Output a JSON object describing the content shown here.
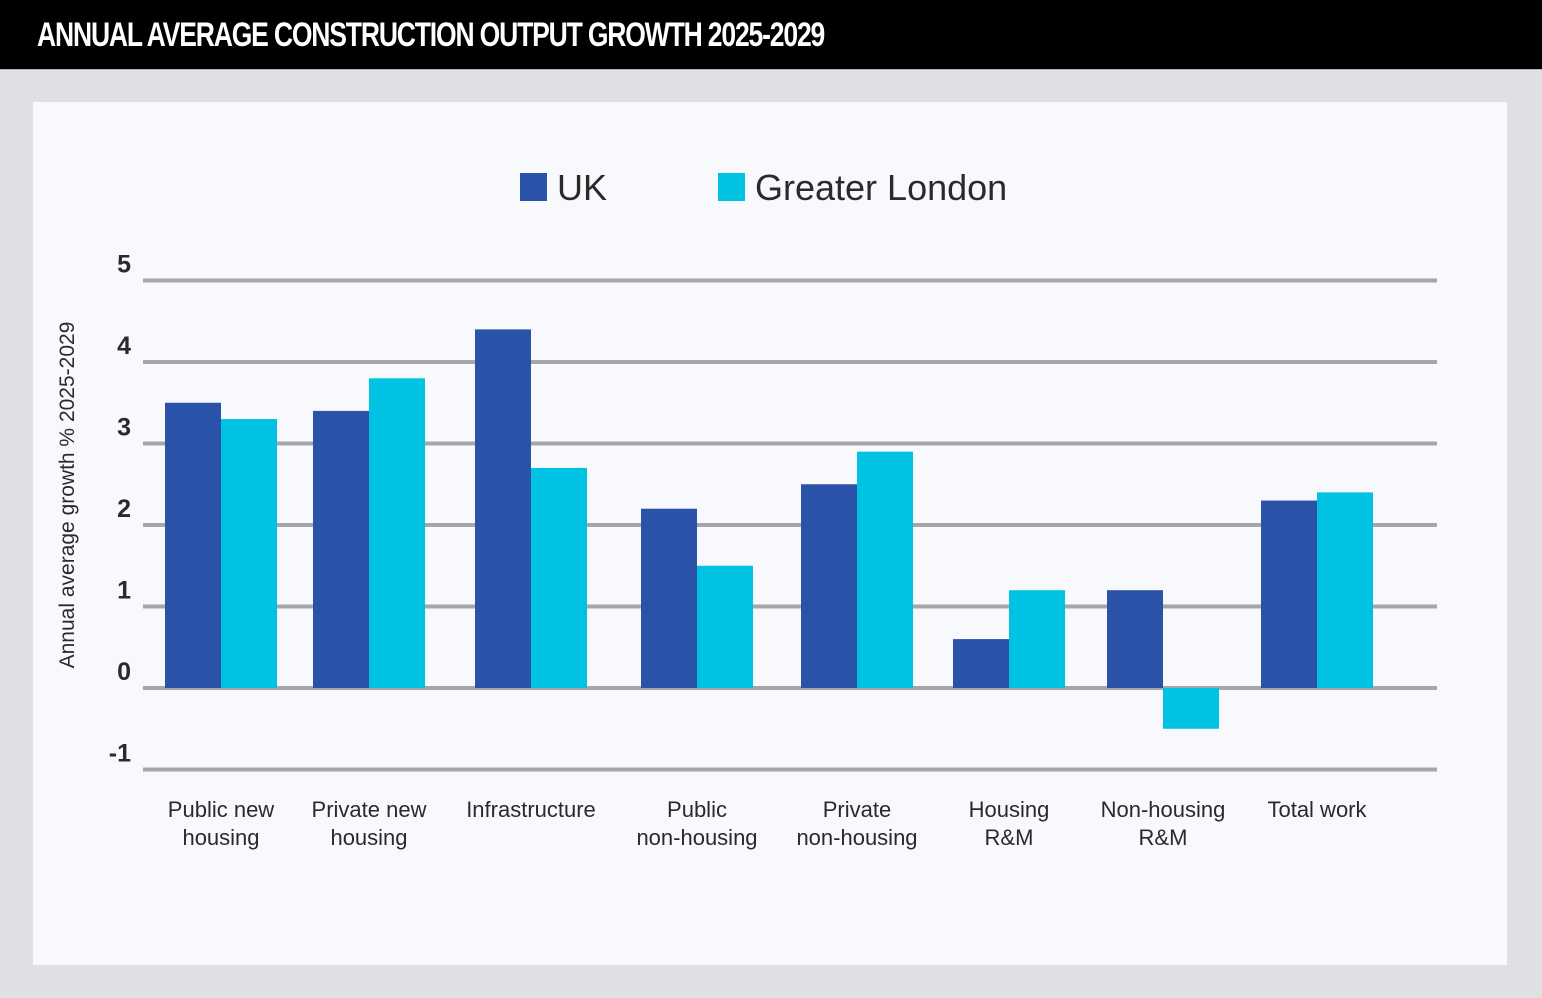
{
  "header": {
    "title": "ANNUAL AVERAGE CONSTRUCTION OUTPUT GROWTH 2025-2029"
  },
  "colors": {
    "uk": "#2a52a8",
    "greater_london": "#00c3e3",
    "grid": "#a6a6a6",
    "header_bg": "#000000",
    "panel_bg": "#f7f9fc",
    "page_bg": "#dfe0e4"
  },
  "chart_data": {
    "type": "bar",
    "title": "ANNUAL AVERAGE CONSTRUCTION OUTPUT GROWTH 2025-2029",
    "xlabel": "",
    "ylabel": "Annual average growth % 2025-2029",
    "ylim": [
      -1,
      5
    ],
    "yticks": [
      "5",
      "4",
      "3",
      "2",
      "1",
      "0",
      "-1"
    ],
    "ytick_values": [
      5,
      4,
      3,
      2,
      1,
      0,
      -1
    ],
    "grid": true,
    "legend_position": "top-center",
    "categories": [
      [
        "Public new",
        "housing"
      ],
      [
        "Private new",
        "housing"
      ],
      [
        "Infrastructure"
      ],
      [
        "Public",
        "non-housing"
      ],
      [
        "Private",
        "non-housing"
      ],
      [
        "Housing",
        "R&M"
      ],
      [
        "Non-housing",
        "R&M"
      ],
      [
        "Total work"
      ]
    ],
    "series": [
      {
        "name": "UK",
        "color": "#2a52a8",
        "values": [
          3.5,
          3.4,
          4.4,
          2.2,
          2.5,
          0.6,
          1.2,
          2.3
        ]
      },
      {
        "name": "Greater London",
        "color": "#00c3e3",
        "values": [
          3.3,
          3.8,
          2.7,
          1.5,
          2.9,
          1.2,
          -0.5,
          2.4
        ]
      }
    ]
  }
}
